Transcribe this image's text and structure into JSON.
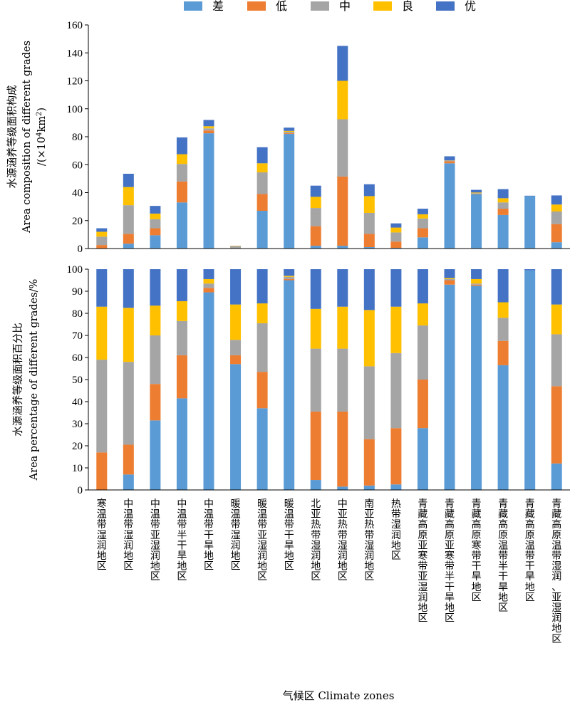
{
  "legend": [
    "差",
    "低",
    "中",
    "良",
    "优"
  ],
  "colors": [
    "#5b9bd5",
    "#ed7d31",
    "#a5a5a5",
    "#ffc000",
    "#4472c4"
  ],
  "top_panel": {
    "ylabel_cn": "水源涵养等级面积构成",
    "ylabel_en": "Area composition of different grades",
    "ylabel_unit_prefix": "/(×10",
    "ylabel_unit_exp1": "4",
    "ylabel_unit_mid": "km",
    "ylabel_unit_exp2": "2",
    "ylabel_unit_suffix": ")"
  },
  "bottom_panel": {
    "ylabel_cn": "水源涵养等级面积百分比",
    "ylabel_en": "Area percentage of different grades/%"
  },
  "xlabel": "气候区 Climate zones",
  "chart_data": [
    {
      "type": "bar",
      "stacked": true,
      "title": "",
      "ylabel": "水源涵养等级面积构成 Area composition of different grades /(×10⁴km²)",
      "xlabel": "",
      "ylim": [
        0,
        160
      ],
      "yticks": [
        0,
        20,
        40,
        60,
        80,
        100,
        120,
        140,
        160
      ],
      "legend_position": "top",
      "grid": false,
      "categories": [
        "寒温带湿润地区",
        "中温带湿润地区",
        "中温带亚湿润地区",
        "中温带半干旱地区",
        "中温带干旱地区",
        "暖温带湿润地区",
        "暖温带亚湿润地区",
        "暖温带干旱地区",
        "北亚热带湿润地区",
        "中亚热带湿润地区",
        "南亚热带湿润地区",
        "热带湿润地区",
        "青藏高原亚寒带亚湿润地区",
        "青藏高原亚寒带半干旱地区",
        "青藏高原寒带干旱地区",
        "青藏高原温带半干旱地区",
        "青藏高原温带干旱地区",
        "青藏高原温带湿润、亚湿润地区"
      ],
      "series": [
        {
          "name": "差",
          "values": [
            0,
            3.5,
            9.5,
            33,
            82.5,
            0,
            27,
            82,
            2,
            2,
            1,
            0.5,
            8,
            61,
            39,
            24,
            37.5,
            4.5
          ]
        },
        {
          "name": "低",
          "values": [
            2.5,
            7,
            5,
            15,
            2,
            0,
            12,
            0.5,
            14,
            49.5,
            9.5,
            4.5,
            6.5,
            1.5,
            0.3,
            4.5,
            0,
            13
          ]
        },
        {
          "name": "中",
          "values": [
            6,
            20.5,
            6.5,
            12.5,
            1.5,
            1.8,
            15.5,
            1,
            13,
            41,
            15,
            6.5,
            7,
            0.3,
            0.3,
            4.5,
            0,
            9
          ]
        },
        {
          "name": "良",
          "values": [
            3.5,
            13,
            4,
            7,
            1.5,
            0.2,
            6.5,
            0.7,
            8,
            27.5,
            12,
            3.5,
            3,
            0.2,
            0.5,
            3,
            0,
            5
          ]
        },
        {
          "name": "优",
          "values": [
            2.5,
            9.5,
            5.5,
            12,
            4.5,
            0,
            11.5,
            2.3,
            8,
            25,
            8.5,
            3,
            4,
            3,
            1.9,
            6.5,
            0.3,
            6.5
          ]
        }
      ]
    },
    {
      "type": "bar",
      "stacked": true,
      "title": "",
      "ylabel": "水源涵养等级面积百分比 Area percentage of different grades/%",
      "xlabel": "气候区 Climate zones",
      "ylim": [
        0,
        100
      ],
      "yticks": [
        0,
        10,
        20,
        30,
        40,
        50,
        60,
        70,
        80,
        90,
        100
      ],
      "grid": false,
      "categories": [
        "寒温带湿润地区",
        "中温带湿润地区",
        "中温带亚湿润地区",
        "中温带半干旱地区",
        "中温带干旱地区",
        "暖温带湿润地区",
        "暖温带亚湿润地区",
        "暖温带干旱地区",
        "北亚热带湿润地区",
        "中亚热带湿润地区",
        "南亚热带湿润地区",
        "热带湿润地区",
        "青藏高原亚寒带亚湿润地区",
        "青藏高原亚寒带半干旱地区",
        "青藏高原寒带干旱地区",
        "青藏高原温带半干旱地区",
        "青藏高原温带干旱地区",
        "青藏高原温带湿润、亚湿润地区"
      ],
      "series": [
        {
          "name": "差",
          "values": [
            0,
            7,
            31.5,
            41.5,
            89.5,
            57,
            37,
            95,
            4.5,
            1.5,
            2,
            2.5,
            28,
            93,
            92.5,
            56.5,
            99.5,
            12
          ]
        },
        {
          "name": "低",
          "values": [
            17,
            13.5,
            16.5,
            19.5,
            2,
            4,
            16.5,
            0.5,
            31,
            34,
            21,
            25.5,
            22,
            2,
            0.5,
            11,
            0,
            35
          ]
        },
        {
          "name": "中",
          "values": [
            42,
            37.5,
            22,
            15.5,
            2,
            7,
            22,
            1,
            28.5,
            28.5,
            33,
            34,
            24.5,
            0.5,
            0.5,
            10.5,
            0,
            23.5
          ]
        },
        {
          "name": "良",
          "values": [
            24,
            24.5,
            13.5,
            9,
            2,
            16,
            9,
            0.5,
            18,
            19,
            25.5,
            21,
            10,
            0.5,
            2,
            7,
            0,
            13.5
          ]
        },
        {
          "name": "优",
          "values": [
            17,
            17.5,
            16.5,
            14.5,
            4.5,
            16,
            15.5,
            3,
            18,
            17,
            18.5,
            17,
            15.5,
            4,
            4.5,
            15,
            0.5,
            16
          ]
        }
      ]
    }
  ]
}
